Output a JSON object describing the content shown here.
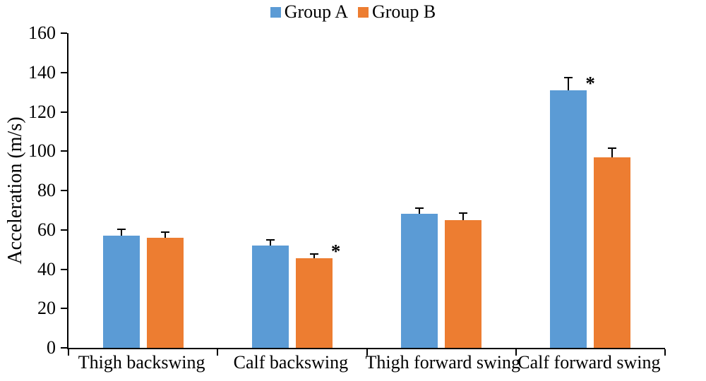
{
  "chart_data": {
    "type": "bar",
    "title": "",
    "categories": [
      "Thigh backswing",
      "Calf backswing",
      "Thigh forward swing",
      "Calf forward swing"
    ],
    "series": [
      {
        "name": "Group A",
        "color": "#5B9BD5",
        "values": [
          57,
          52,
          68,
          131
        ],
        "errors": [
          3,
          2.5,
          2.5,
          6
        ],
        "annotations": [
          "",
          "",
          "",
          "*"
        ]
      },
      {
        "name": "Group B",
        "color": "#ED7D31",
        "values": [
          56,
          45.5,
          65,
          97
        ],
        "errors": [
          2.5,
          2,
          3,
          4
        ],
        "annotations": [
          "",
          "*",
          "",
          ""
        ]
      }
    ],
    "xlabel": "",
    "ylabel": "Acceleration (m/s)",
    "ylim": [
      0,
      160
    ],
    "yticks": [
      0,
      20,
      40,
      60,
      80,
      100,
      120,
      140,
      160
    ],
    "grid": false,
    "legend_position": "top-center",
    "significance_marker": "*"
  }
}
